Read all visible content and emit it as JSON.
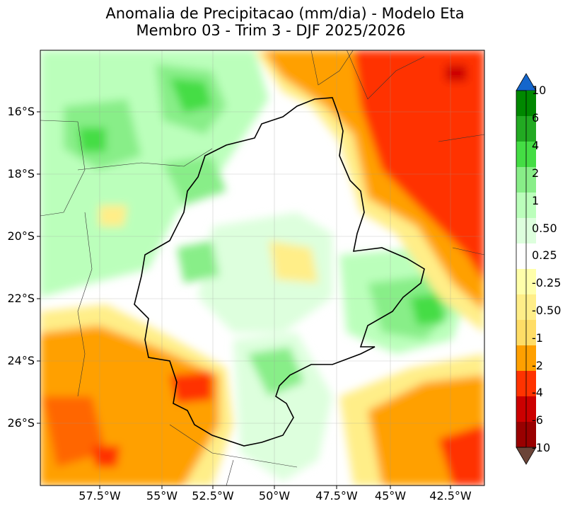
{
  "title": {
    "line1": "Anomalia de Precipitacao (mm/dia) - Modelo Eta",
    "line2": "Membro 03 - Trim 3 - DJF 2025/2026"
  },
  "axes": {
    "lat_labels": [
      "16°S",
      "18°S",
      "20°S",
      "22°S",
      "24°S",
      "26°S"
    ],
    "lon_labels": [
      "57.5°W",
      "55°W",
      "52.5°W",
      "50°W",
      "47.5°W",
      "45°W",
      "42.5°W"
    ]
  },
  "colorbar": {
    "labels": [
      "10",
      "6",
      "4",
      "2",
      "1",
      "0.50",
      "0.25",
      "-0.25",
      "-0.50",
      "-1",
      "-2",
      "-4",
      "-6",
      "-10"
    ],
    "colors": [
      "#0066cc",
      "#008800",
      "#22aa22",
      "#44dd44",
      "#88ee88",
      "#bbffbb",
      "#ddffdd",
      "#ffffff",
      "#ffffaa",
      "#ffee88",
      "#ffdd66",
      "#ffa000",
      "#ff3300",
      "#cc0000",
      "#990000",
      "#6b4438"
    ],
    "extend_top_color": "#1466cc",
    "extend_bottom_color": "#6b4438"
  }
}
